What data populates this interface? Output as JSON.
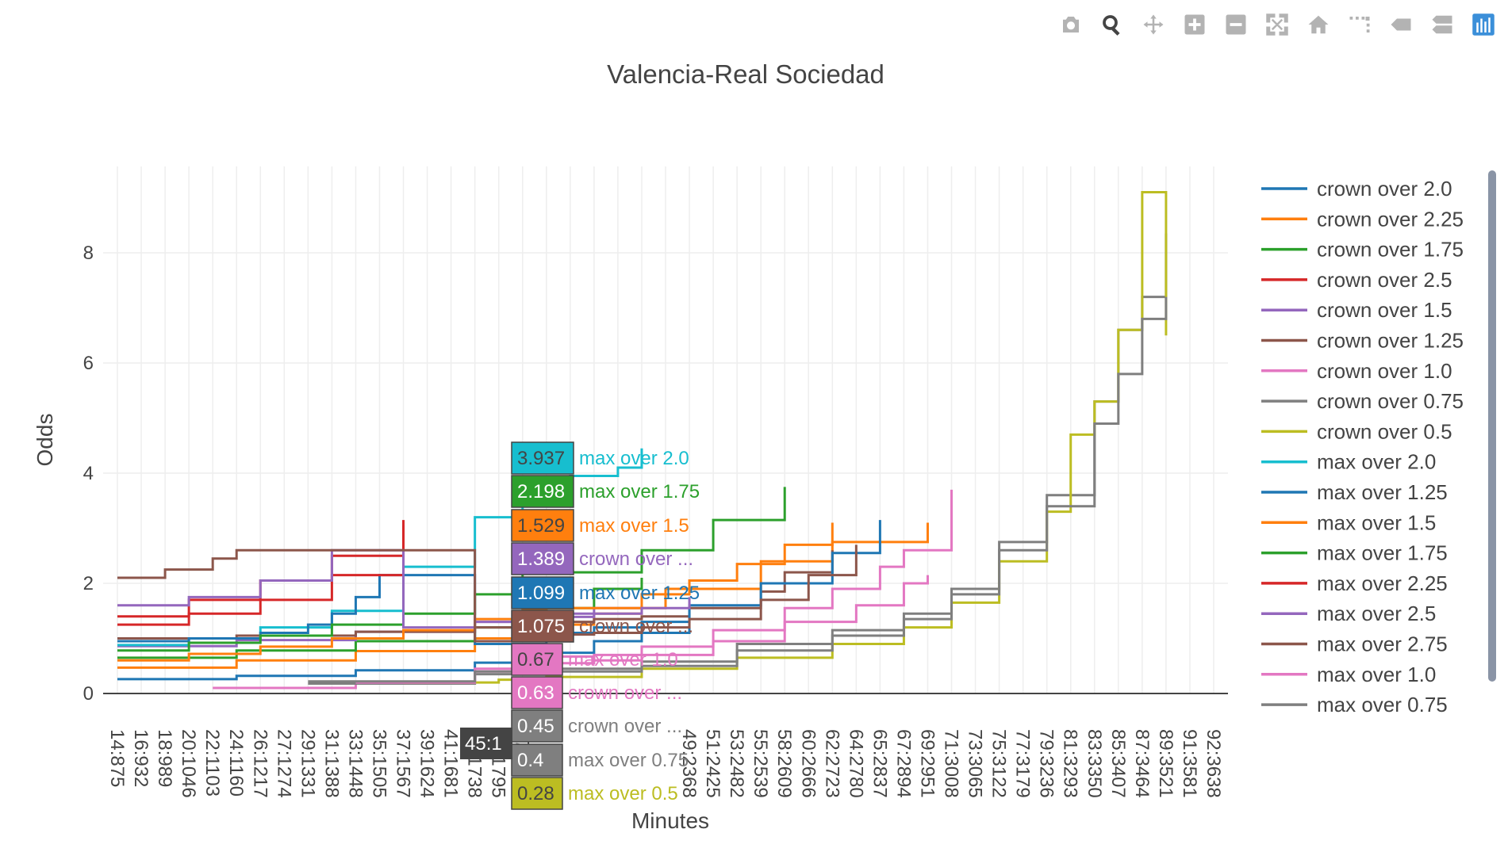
{
  "modebar": {
    "icons": [
      "camera-icon",
      "zoom-icon",
      "pan-icon",
      "zoom-in-icon",
      "zoom-out-icon",
      "autoscale-icon",
      "home-icon",
      "spike-lines-icon",
      "hover-closest-icon",
      "hover-compare-icon",
      "plotly-logo-icon"
    ]
  },
  "chart_data": {
    "type": "line",
    "title": "Valencia-Real Sociedad",
    "xlabel": "Minutes",
    "ylabel": "Odds",
    "ylim": [
      0,
      9.5
    ],
    "yticks": [
      "0",
      "2",
      "4",
      "6",
      "8"
    ],
    "x_tick_labels": [
      "14:875",
      "16:932",
      "18:989",
      "20:1046",
      "22:1103",
      "24:1160",
      "26:1217",
      "27:1274",
      "29:1331",
      "31:1388",
      "33:1448",
      "35:1505",
      "37:1567",
      "39:1624",
      "41:1681",
      "43:1738",
      "45:1795",
      "47:1855",
      "",
      "",
      "",
      "",
      "",
      "",
      "49:2368",
      "51:2425",
      "53:2482",
      "55:2539",
      "58:2609",
      "60:2666",
      "62:2723",
      "64:2780",
      "65:2837",
      "67:2894",
      "69:2951",
      "71:3008",
      "73:3065",
      "75:3122",
      "77:3179",
      "79:3236",
      "81:3293",
      "83:3350",
      "85:3407",
      "87:3464",
      "89:3521",
      "91:3581",
      "92:3638"
    ],
    "grid": true,
    "legend_position": "right",
    "series": [
      {
        "name": "crown  over 2.0",
        "color": "#1f77b4",
        "x": [
          0,
          5,
          10,
          15,
          18,
          20,
          22,
          24
        ],
        "y": [
          0.26,
          0.32,
          0.42,
          0.56,
          0.74,
          0.95,
          1.1,
          1.2
        ]
      },
      {
        "name": "crown  over 2.25",
        "color": "#ff7f0e",
        "x": [
          0,
          5,
          10,
          15,
          18,
          20,
          22,
          23,
          27,
          30,
          34
        ],
        "y": [
          0.47,
          0.6,
          0.77,
          1.0,
          1.25,
          1.45,
          1.55,
          1.9,
          2.4,
          2.75,
          3.1
        ]
      },
      {
        "name": "crown  over 1.75",
        "color": "#2ca02c",
        "x": [
          0,
          5,
          10,
          15,
          18,
          20,
          22
        ],
        "y": [
          0.65,
          0.78,
          0.95,
          1.2,
          1.55,
          1.9,
          2.1
        ]
      },
      {
        "name": "crown  over 2.5",
        "color": "#d62728",
        "x": [
          0,
          3,
          6,
          9,
          12
        ],
        "y": [
          1.4,
          1.7,
          2.05,
          2.5,
          3.15
        ]
      },
      {
        "name": "crown  over 1.5",
        "color": "#9467bd",
        "x": [
          0,
          5,
          10,
          15,
          18,
          20,
          22
        ],
        "y": [
          0.86,
          0.97,
          1.12,
          1.3,
          1.45,
          1.55,
          1.6
        ]
      },
      {
        "name": "crown  over 1.25",
        "color": "#8c564b",
        "x": [
          0,
          5,
          10,
          15,
          18,
          20,
          22,
          24,
          27,
          28,
          30
        ],
        "y": [
          1.0,
          1.05,
          1.12,
          1.2,
          1.3,
          1.35,
          1.4,
          1.55,
          1.85,
          2.2,
          2.6
        ]
      },
      {
        "name": "crown  over 1.0",
        "color": "#e377c2",
        "x": [
          4,
          10,
          15,
          18,
          20,
          22,
          25,
          28,
          30,
          32,
          33,
          35
        ],
        "y": [
          0.1,
          0.2,
          0.4,
          0.55,
          0.7,
          0.85,
          1.15,
          1.55,
          1.9,
          2.3,
          2.6,
          3.7
        ]
      },
      {
        "name": "crown  over 0.75",
        "color": "#7f7f7f",
        "x": [
          8,
          15,
          18,
          22,
          26,
          30,
          33,
          35,
          37,
          39,
          41,
          42,
          43,
          44
        ],
        "y": [
          0.18,
          0.35,
          0.45,
          0.58,
          0.9,
          1.15,
          1.45,
          1.9,
          2.75,
          3.6,
          5.3,
          6.6,
          7.2,
          8.35
        ]
      },
      {
        "name": "crown  over 0.5",
        "color": "#bcbd22",
        "x": [
          12,
          16,
          18,
          22,
          26,
          30,
          33,
          35,
          37,
          39,
          40,
          41,
          42,
          43,
          44
        ],
        "y": [
          0.2,
          0.25,
          0.3,
          0.45,
          0.65,
          0.9,
          1.2,
          1.65,
          2.4,
          3.3,
          4.7,
          5.3,
          6.6,
          9.1,
          6.5
        ]
      },
      {
        "name": "max  over 2.0",
        "color": "#17becf",
        "x": [
          0,
          3,
          6,
          9,
          12,
          15,
          17,
          18,
          19,
          21,
          22
        ],
        "y": [
          0.88,
          1.0,
          1.2,
          1.5,
          2.3,
          3.2,
          3.8,
          3.94,
          3.95,
          4.1,
          4.45
        ]
      },
      {
        "name": "max  over 1.25",
        "color": "#1f77b4",
        "x": [
          0,
          3,
          6,
          8,
          9,
          10,
          11,
          15,
          18,
          20,
          22,
          24,
          27,
          30,
          32
        ],
        "y": [
          0.95,
          1.0,
          1.1,
          1.25,
          1.45,
          1.75,
          2.15,
          0.9,
          1.1,
          1.2,
          1.3,
          1.6,
          2.0,
          2.55,
          3.15
        ]
      },
      {
        "name": "max  over 1.5",
        "color": "#ff7f0e",
        "x": [
          0,
          3,
          6,
          9,
          12,
          15,
          17,
          18,
          22,
          24,
          26,
          28,
          30
        ],
        "y": [
          0.6,
          0.72,
          0.85,
          1.0,
          1.15,
          1.35,
          1.53,
          1.55,
          1.8,
          2.05,
          2.35,
          2.7,
          3.1
        ]
      },
      {
        "name": "max  over 1.75",
        "color": "#2ca02c",
        "x": [
          0,
          3,
          6,
          9,
          12,
          15,
          17,
          18,
          22,
          25,
          28
        ],
        "y": [
          0.78,
          0.92,
          1.05,
          1.25,
          1.45,
          1.8,
          2.2,
          2.2,
          2.6,
          3.15,
          3.75
        ]
      },
      {
        "name": "max  over 2.25",
        "color": "#d62728",
        "x": [
          0,
          3,
          6,
          9,
          12
        ],
        "y": [
          1.25,
          1.45,
          1.7,
          2.15,
          3.05
        ]
      },
      {
        "name": "max  over 2.5",
        "color": "#9467bd",
        "x": [
          0,
          3,
          6,
          9,
          12,
          15,
          18,
          20,
          22,
          24
        ],
        "y": [
          1.6,
          1.75,
          2.05,
          2.6,
          1.2,
          1.3,
          1.39,
          1.45,
          1.55,
          1.75
        ]
      },
      {
        "name": "max  over 2.75",
        "color": "#8c564b",
        "x": [
          0,
          2,
          4,
          5,
          15,
          18,
          20,
          22,
          24,
          27,
          29,
          31
        ],
        "y": [
          2.1,
          2.25,
          2.45,
          2.6,
          0.95,
          1.07,
          1.1,
          1.2,
          1.35,
          1.7,
          2.15,
          2.7
        ]
      },
      {
        "name": "max  over 1.0",
        "color": "#e377c2",
        "x": [
          10,
          15,
          18,
          20,
          22,
          25,
          28,
          31,
          33,
          34
        ],
        "y": [
          0.2,
          0.45,
          0.67,
          0.6,
          0.7,
          0.95,
          1.3,
          1.6,
          2.0,
          2.15
        ]
      },
      {
        "name": "max  over 0.75",
        "color": "#7f7f7f",
        "x": [
          8,
          15,
          18,
          22,
          26,
          30,
          33,
          35,
          37,
          39,
          41,
          42,
          43,
          44
        ],
        "y": [
          0.22,
          0.4,
          0.4,
          0.5,
          0.78,
          1.05,
          1.35,
          1.8,
          2.6,
          3.4,
          4.9,
          5.8,
          6.8,
          7.2
        ]
      }
    ],
    "hover_labels": [
      {
        "value": "3.937",
        "name": "max  over 2.0",
        "color": "#17becf",
        "text_color": "#444444"
      },
      {
        "value": "2.198",
        "name": "max  over 1.75",
        "color": "#2ca02c",
        "text_color": "#ffffff"
      },
      {
        "value": "1.529",
        "name": "max  over 1.5",
        "color": "#ff7f0e",
        "text_color": "#444444"
      },
      {
        "value": "1.389",
        "name": "crown  over ...",
        "color": "#9467bd",
        "text_color": "#ffffff"
      },
      {
        "value": "1.099",
        "name": "max  over 1.25",
        "color": "#1f77b4",
        "text_color": "#ffffff"
      },
      {
        "value": "1.075",
        "name": "crown  over ...",
        "color": "#8c564b",
        "text_color": "#ffffff"
      },
      {
        "value": "0.67",
        "name": "max  over 1.0",
        "color": "#e377c2",
        "text_color": "#444444"
      },
      {
        "value": "0.63",
        "name": "crown  over ...",
        "color": "#e377c2",
        "text_color": "#ffffff"
      },
      {
        "value": "0.45",
        "name": "crown  over ...",
        "color": "#7f7f7f",
        "text_color": "#ffffff"
      },
      {
        "value": "0.4",
        "name": "max  over 0.75",
        "color": "#7f7f7f",
        "text_color": "#ffffff"
      },
      {
        "value": "0.28",
        "name": "max  over 0.5",
        "color": "#bcbd22",
        "text_color": "#444444"
      }
    ],
    "x_hover_label": "45:1"
  }
}
